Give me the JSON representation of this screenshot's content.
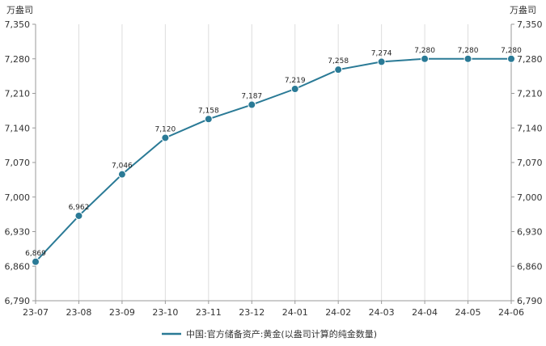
{
  "chart_data": {
    "type": "line",
    "categories": [
      "23-07",
      "23-08",
      "23-09",
      "23-10",
      "23-11",
      "23-12",
      "24-01",
      "24-02",
      "24-03",
      "24-04",
      "24-05",
      "24-06"
    ],
    "series": [
      {
        "name": "中国:官方储备资产:黄金(以盎司计算的纯金数量)",
        "values": [
          6869,
          6962,
          7046,
          7120,
          7158,
          7187,
          7219,
          7258,
          7274,
          7280,
          7280,
          7280
        ],
        "labels": [
          "6,869",
          "6,962",
          "7,046",
          "7,120",
          "7,158",
          "7,187",
          "7,219",
          "7,258",
          "7,274",
          "7,280",
          "7,280",
          "7,280"
        ]
      }
    ],
    "ylim": [
      6790,
      7350
    ],
    "y_ticks": [
      "7,350",
      "7,280",
      "7,210",
      "7,140",
      "7,070",
      "7,000",
      "6,930",
      "6,860",
      "6,790"
    ],
    "y_unit_left": "万盎司",
    "y_unit_right": "万盎司",
    "grid": "vertical",
    "legend_position": "bottom-center",
    "colors": {
      "series": "#2a7a96",
      "axis": "#999999",
      "grid": "#dddddd"
    }
  }
}
